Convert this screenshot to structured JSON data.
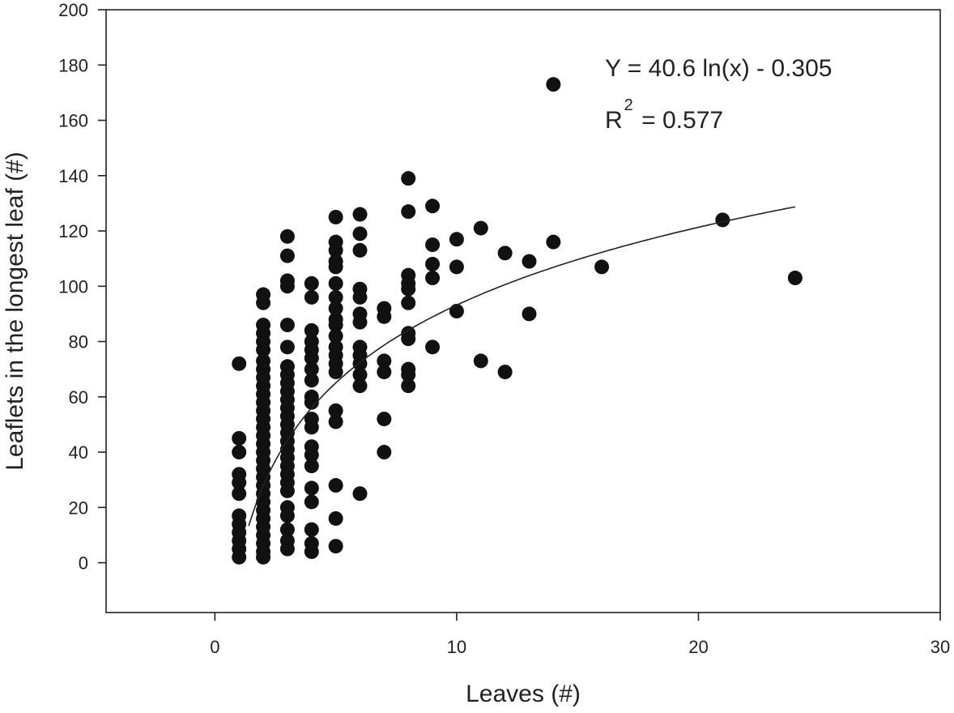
{
  "chart_data": {
    "type": "scatter",
    "title": "",
    "xlabel": "Leaves (#)",
    "ylabel": "Leaflets in the longest leaf (#)",
    "xlim": [
      -4.5,
      30
    ],
    "ylim": [
      -18,
      200
    ],
    "xticks": [
      0,
      10,
      20,
      30
    ],
    "yticks": [
      0,
      20,
      40,
      60,
      80,
      100,
      120,
      140,
      160,
      180,
      200
    ],
    "grid": false,
    "colors": {
      "points": "#111111",
      "axis": "#222222",
      "fit": "#222222"
    },
    "annotation": {
      "equation": "Y = 40.6 ln(x) - 0.305",
      "r2_prefix": "R",
      "r2_superscript": "2",
      "r2_value": " = 0.577"
    },
    "fit": {
      "kind": "log",
      "a": 40.6,
      "b": -0.305,
      "x_from": 1.4,
      "x_to": 24
    },
    "points": [
      [
        1,
        72
      ],
      [
        1,
        45
      ],
      [
        1,
        40
      ],
      [
        1,
        32
      ],
      [
        1,
        29
      ],
      [
        1,
        25
      ],
      [
        1,
        17
      ],
      [
        1,
        14
      ],
      [
        1,
        11
      ],
      [
        1,
        8
      ],
      [
        1,
        5
      ],
      [
        1,
        2
      ],
      [
        2,
        97
      ],
      [
        2,
        94
      ],
      [
        2,
        86
      ],
      [
        2,
        83
      ],
      [
        2,
        80
      ],
      [
        2,
        77
      ],
      [
        2,
        73
      ],
      [
        2,
        70
      ],
      [
        2,
        67
      ],
      [
        2,
        64
      ],
      [
        2,
        61
      ],
      [
        2,
        58
      ],
      [
        2,
        55
      ],
      [
        2,
        52
      ],
      [
        2,
        49
      ],
      [
        2,
        46
      ],
      [
        2,
        43
      ],
      [
        2,
        40
      ],
      [
        2,
        37
      ],
      [
        2,
        34
      ],
      [
        2,
        31
      ],
      [
        2,
        28
      ],
      [
        2,
        25
      ],
      [
        2,
        22
      ],
      [
        2,
        19
      ],
      [
        2,
        16
      ],
      [
        2,
        13
      ],
      [
        2,
        10
      ],
      [
        2,
        7
      ],
      [
        2,
        4
      ],
      [
        2,
        2
      ],
      [
        3,
        118
      ],
      [
        3,
        111
      ],
      [
        3,
        102
      ],
      [
        3,
        100
      ],
      [
        3,
        86
      ],
      [
        3,
        78
      ],
      [
        3,
        71
      ],
      [
        3,
        68
      ],
      [
        3,
        65
      ],
      [
        3,
        62
      ],
      [
        3,
        59
      ],
      [
        3,
        56
      ],
      [
        3,
        53
      ],
      [
        3,
        50
      ],
      [
        3,
        47
      ],
      [
        3,
        44
      ],
      [
        3,
        41
      ],
      [
        3,
        38
      ],
      [
        3,
        35
      ],
      [
        3,
        32
      ],
      [
        3,
        29
      ],
      [
        3,
        26
      ],
      [
        3,
        20
      ],
      [
        3,
        17
      ],
      [
        3,
        12
      ],
      [
        3,
        8
      ],
      [
        3,
        5
      ],
      [
        4,
        101
      ],
      [
        4,
        96
      ],
      [
        4,
        84
      ],
      [
        4,
        80
      ],
      [
        4,
        77
      ],
      [
        4,
        74
      ],
      [
        4,
        70
      ],
      [
        4,
        66
      ],
      [
        4,
        60
      ],
      [
        4,
        58
      ],
      [
        4,
        52
      ],
      [
        4,
        49
      ],
      [
        4,
        42
      ],
      [
        4,
        39
      ],
      [
        4,
        35
      ],
      [
        4,
        27
      ],
      [
        4,
        22
      ],
      [
        4,
        12
      ],
      [
        4,
        7
      ],
      [
        4,
        4
      ],
      [
        5,
        125
      ],
      [
        5,
        116
      ],
      [
        5,
        113
      ],
      [
        5,
        109
      ],
      [
        5,
        107
      ],
      [
        5,
        101
      ],
      [
        5,
        96
      ],
      [
        5,
        92
      ],
      [
        5,
        88
      ],
      [
        5,
        86
      ],
      [
        5,
        82
      ],
      [
        5,
        78
      ],
      [
        5,
        75
      ],
      [
        5,
        72
      ],
      [
        5,
        69
      ],
      [
        5,
        55
      ],
      [
        5,
        51
      ],
      [
        5,
        28
      ],
      [
        5,
        16
      ],
      [
        5,
        6
      ],
      [
        6,
        126
      ],
      [
        6,
        119
      ],
      [
        6,
        113
      ],
      [
        6,
        99
      ],
      [
        6,
        96
      ],
      [
        6,
        90
      ],
      [
        6,
        87
      ],
      [
        6,
        78
      ],
      [
        6,
        75
      ],
      [
        6,
        72
      ],
      [
        6,
        68
      ],
      [
        6,
        64
      ],
      [
        6,
        25
      ],
      [
        7,
        92
      ],
      [
        7,
        89
      ],
      [
        7,
        73
      ],
      [
        7,
        69
      ],
      [
        7,
        52
      ],
      [
        7,
        40
      ],
      [
        8,
        139
      ],
      [
        8,
        127
      ],
      [
        8,
        104
      ],
      [
        8,
        101
      ],
      [
        8,
        99
      ],
      [
        8,
        94
      ],
      [
        8,
        83
      ],
      [
        8,
        81
      ],
      [
        8,
        70
      ],
      [
        8,
        68
      ],
      [
        8,
        64
      ],
      [
        9,
        129
      ],
      [
        9,
        115
      ],
      [
        9,
        108
      ],
      [
        9,
        103
      ],
      [
        9,
        78
      ],
      [
        10,
        117
      ],
      [
        10,
        107
      ],
      [
        10,
        91
      ],
      [
        11,
        121
      ],
      [
        11,
        73
      ],
      [
        12,
        112
      ],
      [
        12,
        69
      ],
      [
        13,
        109
      ],
      [
        13,
        90
      ],
      [
        14,
        173
      ],
      [
        14,
        116
      ],
      [
        16,
        107
      ],
      [
        21,
        124
      ],
      [
        24,
        103
      ]
    ]
  }
}
